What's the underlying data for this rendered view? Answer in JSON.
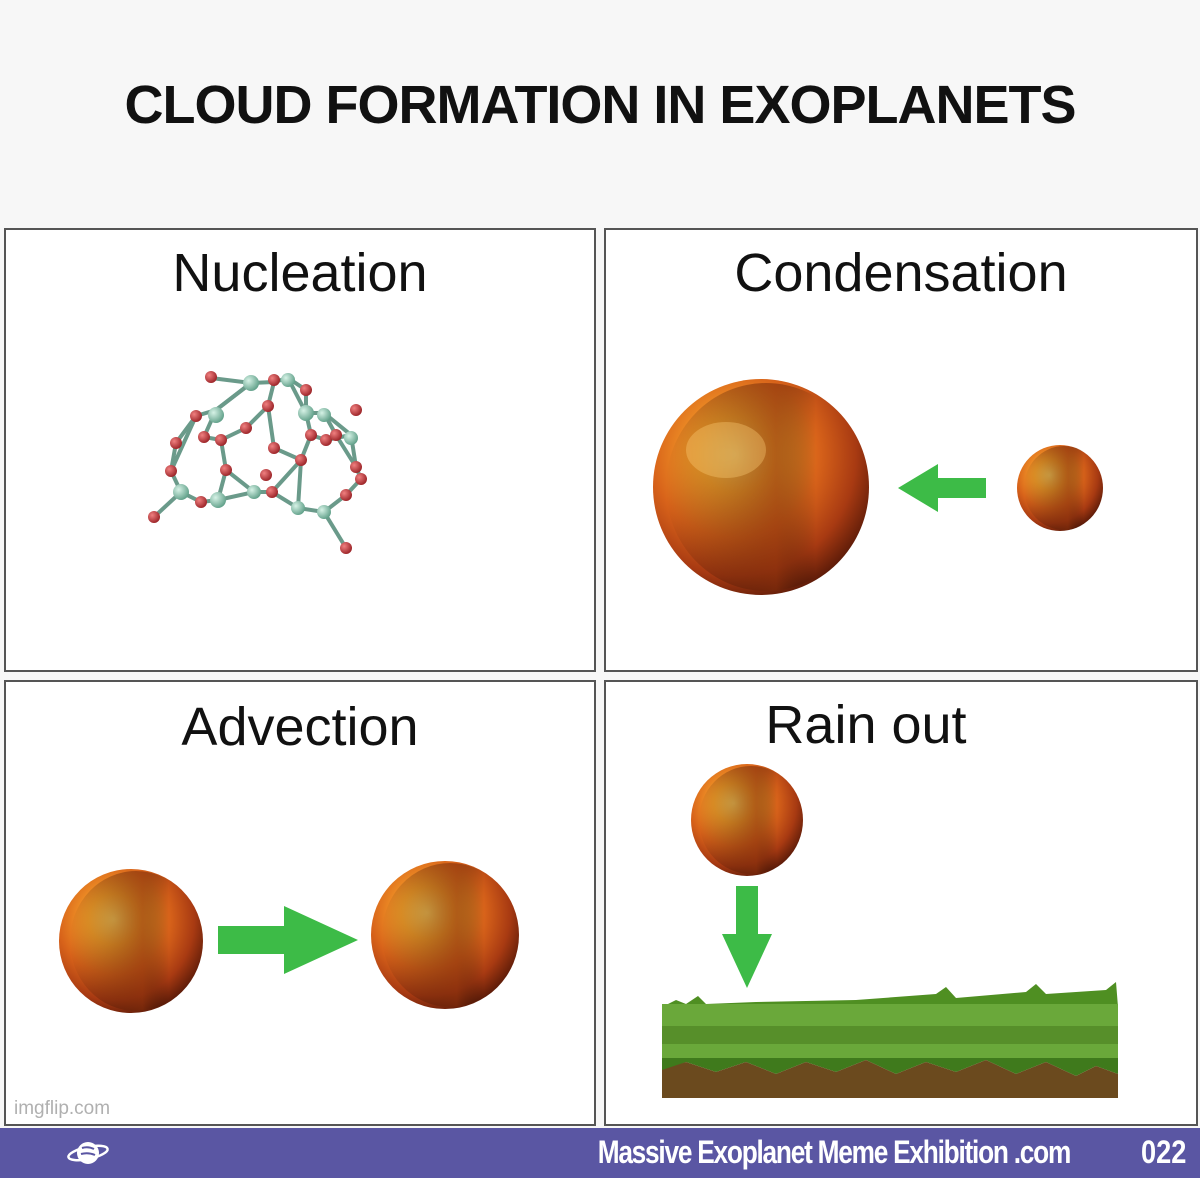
{
  "title": "CLOUD FORMATION IN EXOPLANETS",
  "panels": {
    "nucleation": {
      "label": "Nucleation"
    },
    "condensation": {
      "label": "Condensation"
    },
    "advection": {
      "label": "Advection"
    },
    "rain_out": {
      "label": "Rain out"
    }
  },
  "watermark": "imgflip.com",
  "footer": {
    "site": "Massive Exoplanet Meme Exhibition .com",
    "number": "022",
    "logo_icon": "planet-globe-icon"
  },
  "colors": {
    "arrow": "#3dbb47",
    "footer_bg": "#5a56a3",
    "molecule_atom_red": "#c8383c",
    "molecule_atom_teal": "#7fbfa8",
    "grass": "#5a9a2a",
    "soil": "#6b4a1e"
  }
}
